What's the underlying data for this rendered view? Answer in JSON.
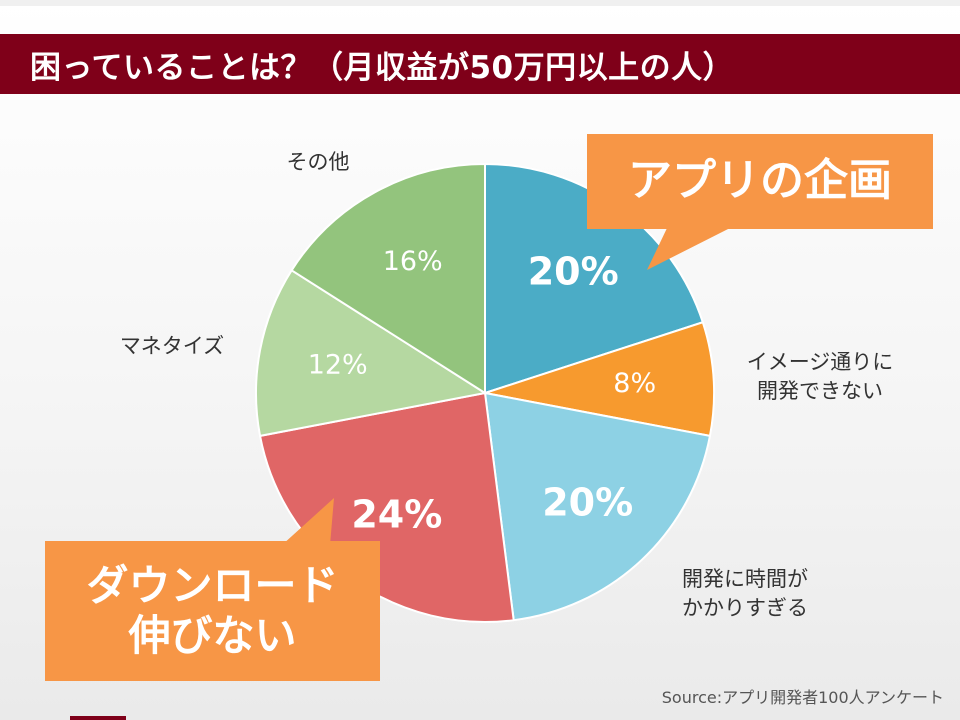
{
  "slide": {
    "title": "困っていることは？（月収益が50万円以上の人）",
    "source": "Source:アプリ開発者100人アンケート",
    "title_bar_color": "#7f0019"
  },
  "callouts": {
    "top": "アプリの企画",
    "bottom": "ダウンロード\n伸びない",
    "color": "#f79646"
  },
  "chart_data": {
    "type": "pie",
    "start_angle_deg": 0,
    "direction": "clockwise",
    "slices": [
      {
        "label": "アプリの企画",
        "value": 20,
        "value_label": "20%",
        "color": "#4bacc6",
        "show_outer_label": false,
        "value_style": "bold"
      },
      {
        "label": "イメージ通りに\n開発できない",
        "value": 8,
        "value_label": "8%",
        "color": "#f79a2e",
        "show_outer_label": true,
        "value_style": "normal"
      },
      {
        "label": "開発に時間が\nかかりすぎる",
        "value": 20,
        "value_label": "20%",
        "color": "#8dd1e4",
        "show_outer_label": true,
        "value_style": "bold"
      },
      {
        "label": "ダウンロード伸びない",
        "value": 24,
        "value_label": "24%",
        "color": "#e06666",
        "show_outer_label": false,
        "value_style": "bold"
      },
      {
        "label": "マネタイズ",
        "value": 12,
        "value_label": "12%",
        "color": "#b5d8a1",
        "show_outer_label": true,
        "value_style": "normal"
      },
      {
        "label": "その他",
        "value": 16,
        "value_label": "16%",
        "color": "#93c47d",
        "show_outer_label": true,
        "value_style": "normal"
      }
    ]
  }
}
